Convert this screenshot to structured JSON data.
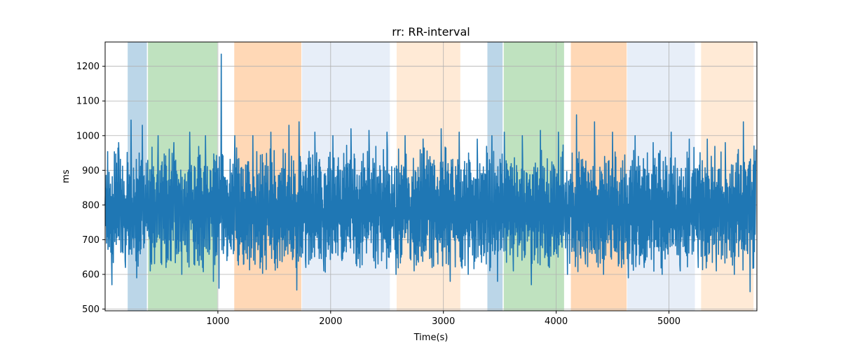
{
  "chart_data": {
    "type": "line",
    "title": "rr: RR-interval",
    "xlabel": "Time(s)",
    "ylabel": "ms",
    "xlim": [
      0,
      5780
    ],
    "ylim": [
      495,
      1270
    ],
    "grid": true,
    "xticks": [
      1000,
      2000,
      3000,
      4000,
      5000
    ],
    "yticks": [
      500,
      600,
      700,
      800,
      900,
      1000,
      1100,
      1200
    ],
    "line_color": "#1f77b4",
    "bands": [
      {
        "x0": 200,
        "x1": 370,
        "color": "#1f77b4",
        "opacity": 0.3
      },
      {
        "x0": 380,
        "x1": 995,
        "color": "#2ca02c",
        "opacity": 0.3
      },
      {
        "x0": 1145,
        "x1": 1740,
        "color": "#ff7f0e",
        "opacity": 0.3
      },
      {
        "x0": 1745,
        "x1": 2525,
        "color": "#aec7e8",
        "opacity": 0.3
      },
      {
        "x0": 2585,
        "x1": 3150,
        "color": "#ffbb78",
        "opacity": 0.3
      },
      {
        "x0": 3390,
        "x1": 3525,
        "color": "#1f77b4",
        "opacity": 0.3
      },
      {
        "x0": 3535,
        "x1": 4070,
        "color": "#2ca02c",
        "opacity": 0.3
      },
      {
        "x0": 4130,
        "x1": 4625,
        "color": "#ff7f0e",
        "opacity": 0.3
      },
      {
        "x0": 4630,
        "x1": 5230,
        "color": "#aec7e8",
        "opacity": 0.3
      },
      {
        "x0": 5285,
        "x1": 5750,
        "color": "#ffbb78",
        "opacity": 0.3
      }
    ],
    "series": [
      {
        "x": [
          0,
          60,
          120,
          180,
          230,
          280,
          330,
          400,
          470,
          540,
          610,
          680,
          750,
          820,
          890,
          960,
          1010,
          1030,
          1080,
          1150,
          1230,
          1310,
          1390,
          1470,
          1550,
          1630,
          1700,
          1720,
          1780,
          1860,
          1940,
          2020,
          2100,
          2180,
          2260,
          2340,
          2420,
          2500,
          2580,
          2660,
          2740,
          2820,
          2900,
          2980,
          3060,
          3140,
          3220,
          3300,
          3380,
          3430,
          3480,
          3540,
          3620,
          3700,
          3780,
          3860,
          3940,
          4020,
          4100,
          4180,
          4260,
          4340,
          4420,
          4500,
          4580,
          4640,
          4700,
          4780,
          4860,
          4940,
          5020,
          5100,
          5180,
          5260,
          5340,
          5420,
          5500,
          5580,
          5660,
          5720,
          5770
        ],
        "y": [
          800,
          570,
          980,
          620,
          1045,
          590,
          1030,
          610,
          1000,
          620,
          980,
          600,
          1010,
          640,
          1000,
          580,
          560,
          1235,
          640,
          1000,
          630,
          1000,
          650,
          1010,
          640,
          1030,
          555,
          1040,
          620,
          1010,
          610,
          1000,
          640,
          1020,
          620,
          1015,
          630,
          1010,
          600,
          1000,
          610,
          990,
          620,
          1020,
          580,
          1010,
          600,
          990,
          630,
          1000,
          580,
          1010,
          610,
          1000,
          570,
          1015,
          620,
          1010,
          600,
          1060,
          630,
          1040,
          600,
          1010,
          620,
          590,
          1000,
          620,
          980,
          600,
          1010,
          610,
          990,
          620,
          990,
          610,
          980,
          600,
          1040,
          550,
          960
        ],
        "min": [
          570,
          555
        ],
        "max": 1235
      }
    ]
  }
}
